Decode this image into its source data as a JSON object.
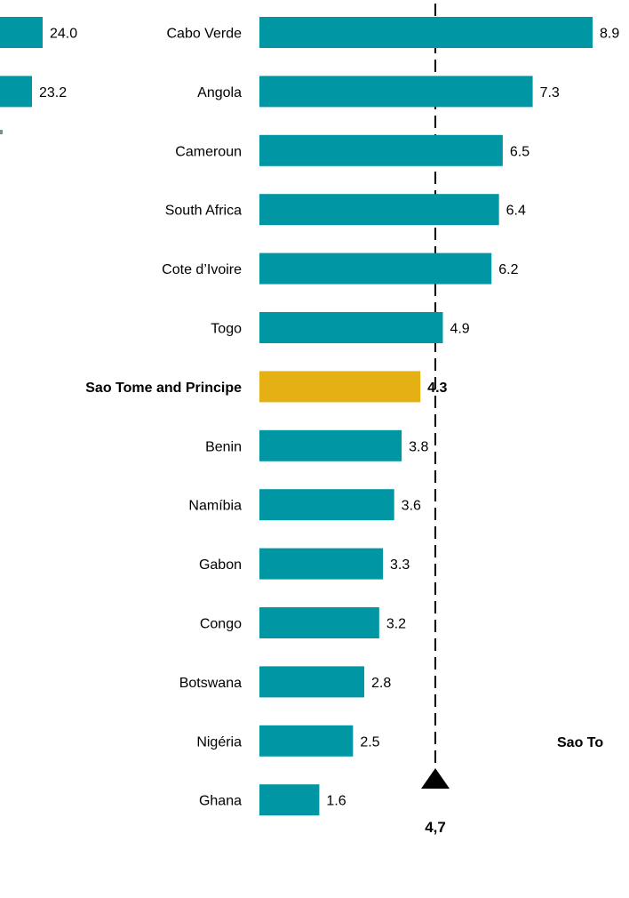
{
  "chart_data": {
    "type": "bar",
    "orientation": "horizontal",
    "colors": {
      "bar": "#0096a3",
      "highlight": "#e5b013",
      "reference": "#000000"
    },
    "categories": [
      "Cabo Verde",
      "Angola",
      "Cameroun",
      "South Africa",
      "Cote d’Ivoire",
      "Togo",
      "Sao Tome and Principe",
      "Benin",
      "Namíbia",
      "Gabon",
      "Congo",
      "Botswana",
      "Nigéria",
      "Ghana"
    ],
    "values": [
      8.9,
      7.3,
      6.5,
      6.4,
      6.2,
      4.9,
      4.3,
      3.8,
      3.6,
      3.3,
      3.2,
      2.8,
      2.5,
      1.6
    ],
    "value_labels": [
      "8.9",
      "7.3",
      "6.5",
      "6.4",
      "6.2",
      "4.9",
      "4.3",
      "3.8",
      "3.6",
      "3.3",
      "3.2",
      "2.8",
      "2.5",
      "1.6"
    ],
    "highlight": "Sao Tome and Principe",
    "xlim": [
      0,
      9.6
    ],
    "reference_line": {
      "value": 4.7,
      "label": "4,7"
    },
    "left_panel": {
      "values": [
        24.0,
        23.2
      ],
      "value_labels": [
        "24.0",
        "23.2"
      ]
    },
    "right_panel": {
      "label": "Sao To"
    }
  }
}
